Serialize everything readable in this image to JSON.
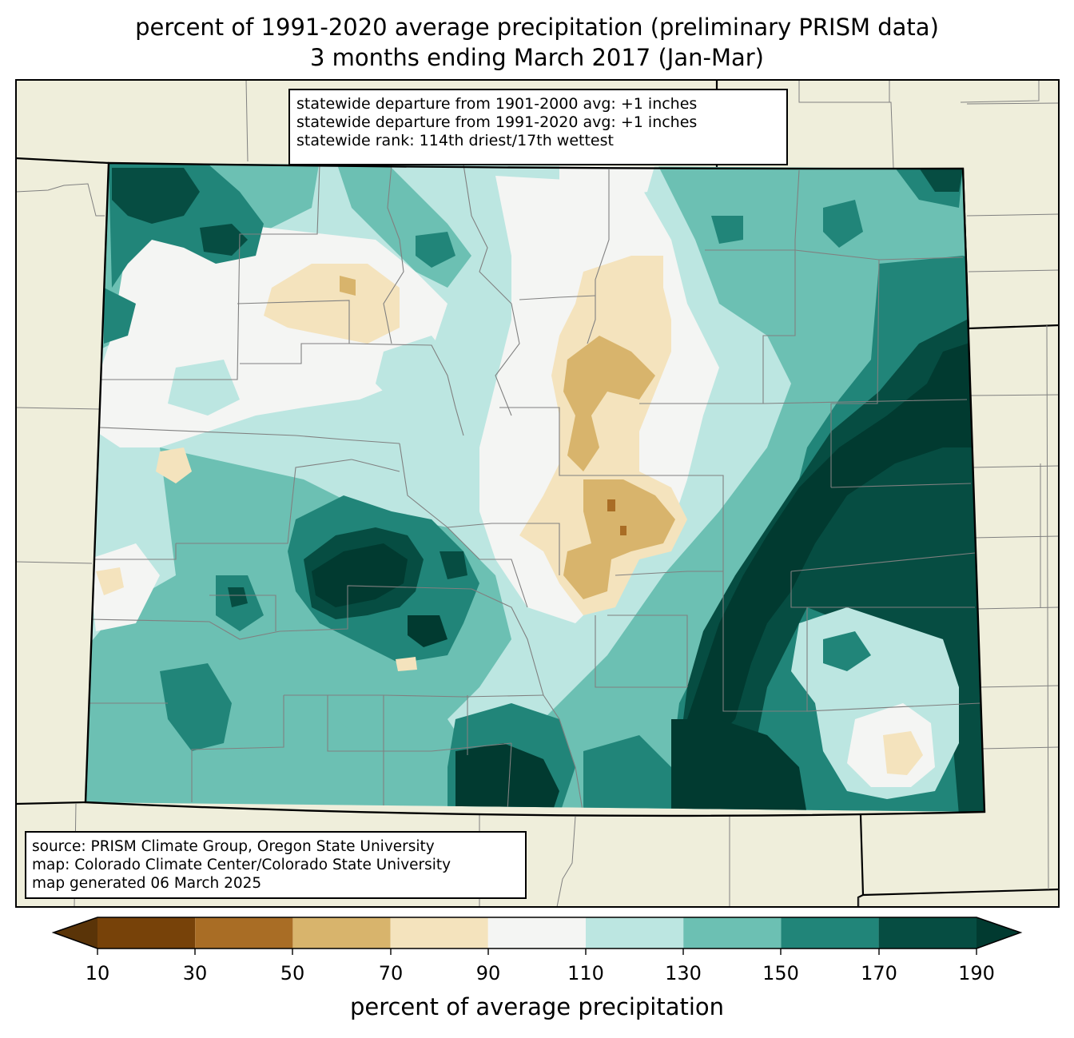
{
  "title": {
    "line1": "percent of 1991-2020 average precipitation (preliminary PRISM data)",
    "line2": "3 months ending March 2017 (Jan-Mar)"
  },
  "info_box": {
    "line1": "statewide departure from 1901-2000 avg: +1 inches",
    "line2": "statewide departure from 1991-2020 avg: +1 inches",
    "line3": "statewide rank: 114th driest/17th wettest"
  },
  "source_box": {
    "line1": "source: PRISM Climate Group, Oregon State University",
    "line2": "map: Colorado Climate Center/Colorado State University",
    "line3": "map generated 06 March 2025"
  },
  "colorbar": {
    "label": "percent of average precipitation",
    "ticks": [
      "10",
      "30",
      "50",
      "70",
      "90",
      "110",
      "130",
      "150",
      "170",
      "190"
    ],
    "colors": [
      "#5a3408",
      "#774209",
      "#a96d25",
      "#d8b46c",
      "#f4e3bd",
      "#f4f5f3",
      "#bce6e1",
      "#6cc0b3",
      "#218579",
      "#064d42",
      "#013a30"
    ],
    "under_color": "#5a3408",
    "over_color": "#013a30"
  },
  "map_colors": {
    "background_land": "#efeedb",
    "state_border": "#000000",
    "county_border": "#808080"
  }
}
